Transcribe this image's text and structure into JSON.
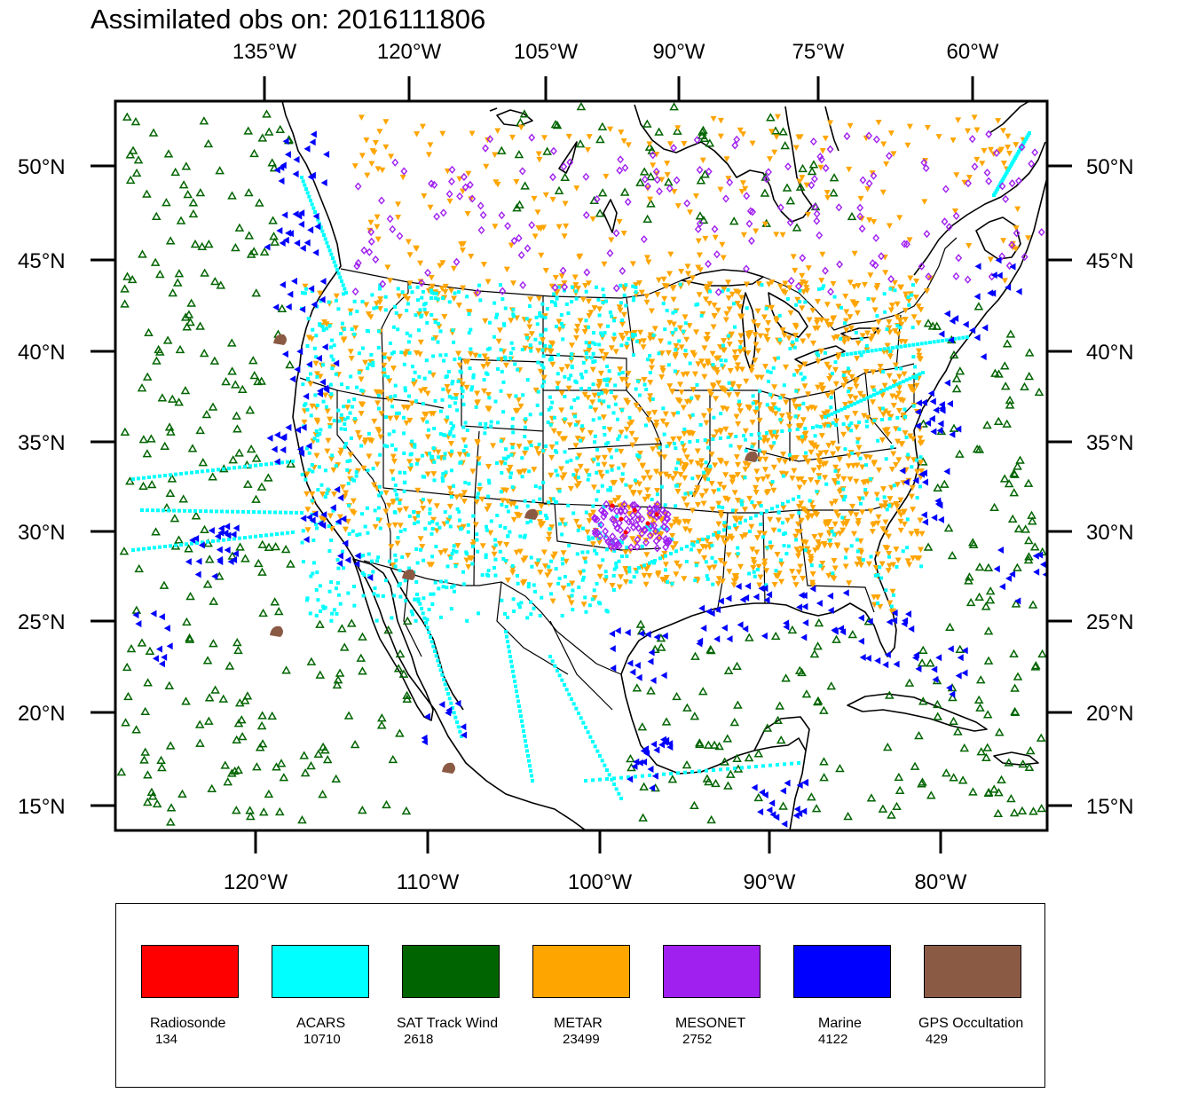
{
  "title": "Assimilated obs on: 2016111806",
  "map": {
    "top_lon_ticks": [
      "135°W",
      "120°W",
      "105°W",
      "90°W",
      "75°W",
      "60°W"
    ],
    "bottom_lon_ticks": [
      "120°W",
      "110°W",
      "100°W",
      "90°W",
      "80°W"
    ],
    "lat_ticks": [
      "50°N",
      "45°N",
      "40°N",
      "35°N",
      "30°N",
      "25°N",
      "20°N",
      "15°N"
    ],
    "regions": [
      "United States",
      "Canada",
      "Mexico",
      "Cuba",
      "Gulf of Mexico",
      "Atlantic Ocean",
      "Pacific Ocean"
    ]
  },
  "legend": {
    "items": [
      {
        "name": "Radiosonde",
        "count": "134",
        "color": "#ff0000",
        "marker": "filled-circle"
      },
      {
        "name": "ACARS",
        "count": "10710",
        "color": "#00ffff",
        "marker": "square"
      },
      {
        "name": "SAT Track Wind",
        "count": "2618",
        "color": "#006400",
        "marker": "open-triangle-up"
      },
      {
        "name": "METAR",
        "count": "23499",
        "color": "#ffa500",
        "marker": "filled-triangle-down"
      },
      {
        "name": "MESONET",
        "count": "2752",
        "color": "#a020f0",
        "marker": "open-diamond"
      },
      {
        "name": "Marine",
        "count": "4122",
        "color": "#0000ff",
        "marker": "filled-triangle-left"
      },
      {
        "name": "GPS Occultation",
        "count": "429",
        "color": "#8b5a44",
        "marker": "filled-blob"
      }
    ]
  }
}
